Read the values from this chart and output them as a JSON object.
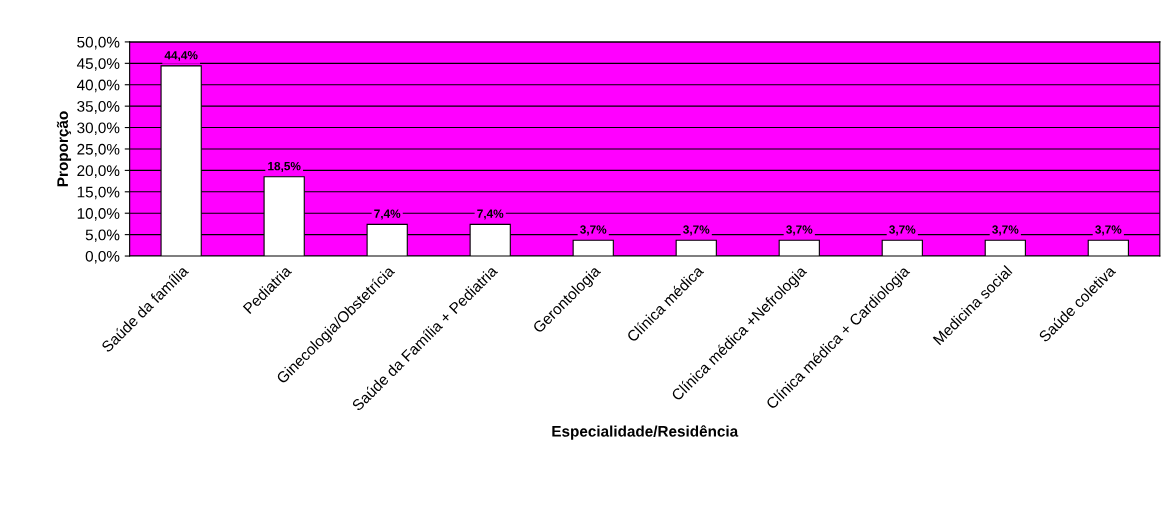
{
  "chart_data": {
    "type": "bar",
    "xlabel": "Especialidade/Residência",
    "ylabel": "Proporção",
    "categories": [
      "Saúde da família",
      "Pediatria",
      "Ginecologia/Obstetrícia",
      "Saúde da Família + Pediatria",
      "Gerontologia",
      "Clínica médica",
      "Clínica médica +Nefrologia",
      "Clínica médica + Cardiologia",
      "Medicina social",
      "Saúde coletiva"
    ],
    "values": [
      44.4,
      18.5,
      7.4,
      7.4,
      3.7,
      3.7,
      3.7,
      3.7,
      3.7,
      3.7
    ],
    "value_labels": [
      "44,4%",
      "18,5%",
      "7,4%",
      "7,4%",
      "3,7%",
      "3,7%",
      "3,7%",
      "3,7%",
      "3,7%",
      "3,7%"
    ],
    "color": "#ffffff",
    "ylim": [
      0,
      50
    ],
    "yticks": [
      {
        "value": 0,
        "label": "0,0%"
      },
      {
        "value": 5,
        "label": "5,0%"
      },
      {
        "value": 10,
        "label": "10,0%"
      },
      {
        "value": 15,
        "label": "15,0%"
      },
      {
        "value": 20,
        "label": "20,0%"
      },
      {
        "value": 25,
        "label": "25,0%"
      },
      {
        "value": 30,
        "label": "30,0%"
      },
      {
        "value": 35,
        "label": "35,0%"
      },
      {
        "value": 40,
        "label": "40,0%"
      },
      {
        "value": 45,
        "label": "45,0%"
      },
      {
        "value": 50,
        "label": "50,0%"
      }
    ],
    "grid": "y",
    "legend": false
  }
}
